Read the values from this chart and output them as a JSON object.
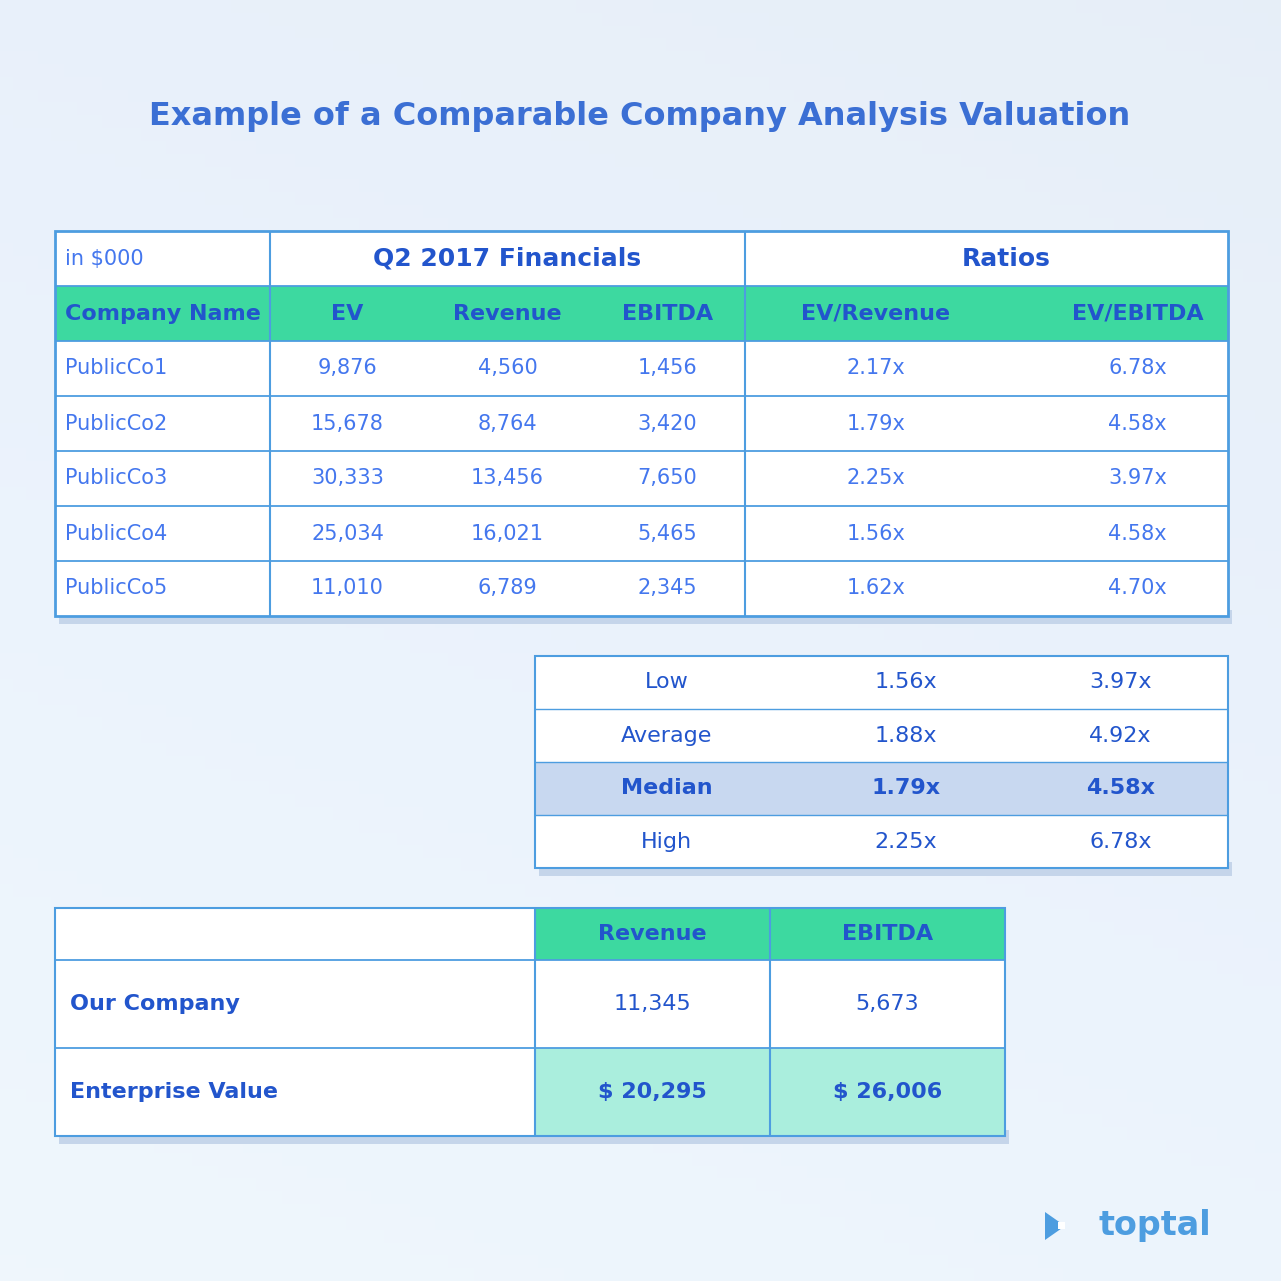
{
  "title": "Example of a Comparable Company Analysis Valuation",
  "title_color": "#3b6fd4",
  "background_color": "#e8f0fb",
  "border_color": "#4d9de0",
  "green_header_color": "#3dd9a0",
  "dark_blue": "#2255cc",
  "blue_text": "#4477ee",
  "median_bg": "#c8d8f0",
  "white": "#ffffff",
  "shadow_color": "#c5d5ea",
  "main_rows": [
    [
      "PublicCo1",
      "9,876",
      "4,560",
      "1,456",
      "2.17x",
      "6.78x"
    ],
    [
      "PublicCo2",
      "15,678",
      "8,764",
      "3,420",
      "1.79x",
      "4.58x"
    ],
    [
      "PublicCo3",
      "30,333",
      "13,456",
      "7,650",
      "2.25x",
      "3.97x"
    ],
    [
      "PublicCo4",
      "25,034",
      "16,021",
      "5,465",
      "1.56x",
      "4.58x"
    ],
    [
      "PublicCo5",
      "11,010",
      "6,789",
      "2,345",
      "1.62x",
      "4.70x"
    ]
  ],
  "stats_rows": [
    [
      "Low",
      "1.56x",
      "3.97x"
    ],
    [
      "Average",
      "1.88x",
      "4.92x"
    ],
    [
      "Median",
      "1.79x",
      "4.58x"
    ],
    [
      "High",
      "2.25x",
      "6.78x"
    ]
  ],
  "bottom_rows": [
    [
      "Our Company",
      "11,345",
      "5,673"
    ],
    [
      "Enterprise Value",
      "$ 20,295",
      "$ 26,006"
    ]
  ]
}
